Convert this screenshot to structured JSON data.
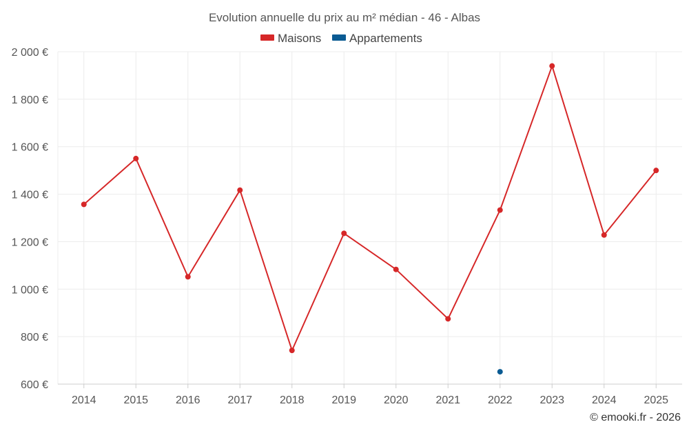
{
  "chart_data": {
    "type": "line",
    "title": "Evolution annuelle du prix au m² médian - 46 - Albas",
    "categories": [
      "2014",
      "2015",
      "2016",
      "2017",
      "2018",
      "2019",
      "2020",
      "2021",
      "2022",
      "2023",
      "2024",
      "2025"
    ],
    "ylim": [
      600,
      2000
    ],
    "yticks": [
      600,
      800,
      1000,
      1200,
      1400,
      1600,
      1800,
      2000
    ],
    "ytick_labels": [
      "600 €",
      "800 €",
      "1 000 €",
      "1 200 €",
      "1 400 €",
      "1 600 €",
      "1 800 €",
      "2 000 €"
    ],
    "grid": true,
    "legend_position": "top-center",
    "series": [
      {
        "name": "Maisons",
        "color": "#d62728",
        "values": [
          1357,
          1550,
          1052,
          1417,
          742,
          1235,
          1083,
          875,
          1333,
          1940,
          1228,
          1500
        ]
      },
      {
        "name": "Appartements",
        "color": "#0a5b93",
        "values": [
          null,
          null,
          null,
          null,
          null,
          null,
          null,
          null,
          652,
          null,
          null,
          null
        ]
      }
    ],
    "credit": "© emooki.fr - 2026"
  }
}
